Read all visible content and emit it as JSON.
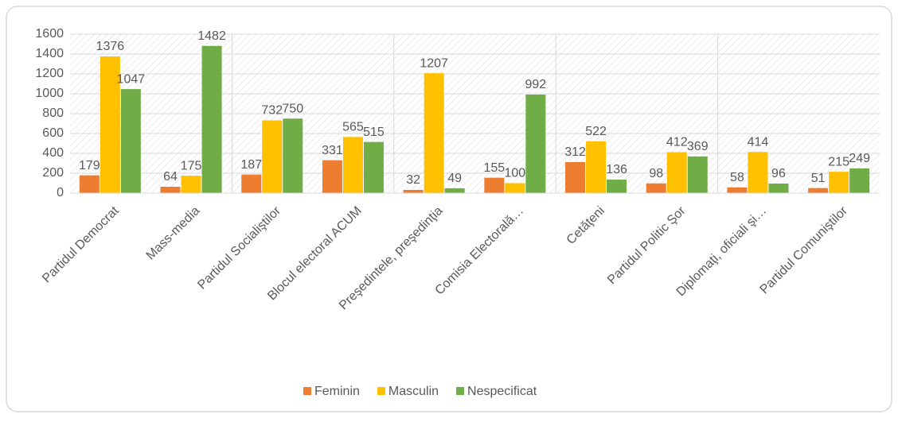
{
  "chart_data": {
    "type": "bar",
    "categories": [
      "Partidul Democrat",
      "Mass-media",
      "Partidul Socialiştilor",
      "Blocul electoral ACUM",
      "Preşedintele, preşedinţia",
      "Comisia Electorală…",
      "Cetăţeni",
      "Partidul Politic Şor",
      "Diplomaţi, oficiali şi…",
      "Partidul Comuniştilor"
    ],
    "series": [
      {
        "name": "Feminin",
        "color": "#ed7d31",
        "values": [
          179,
          64,
          187,
          331,
          32,
          155,
          312,
          98,
          58,
          51
        ]
      },
      {
        "name": "Masculin",
        "color": "#ffc000",
        "values": [
          1376,
          175,
          732,
          565,
          1207,
          100,
          522,
          412,
          414,
          215
        ]
      },
      {
        "name": "Nespecificat",
        "color": "#70ad47",
        "values": [
          1047,
          1482,
          750,
          515,
          49,
          992,
          136,
          369,
          96,
          249
        ]
      }
    ],
    "ylim": [
      0,
      1600
    ],
    "yticks": [
      0,
      200,
      400,
      600,
      800,
      1000,
      1200,
      1400,
      1600
    ],
    "grid": true,
    "legend": "bottom"
  }
}
